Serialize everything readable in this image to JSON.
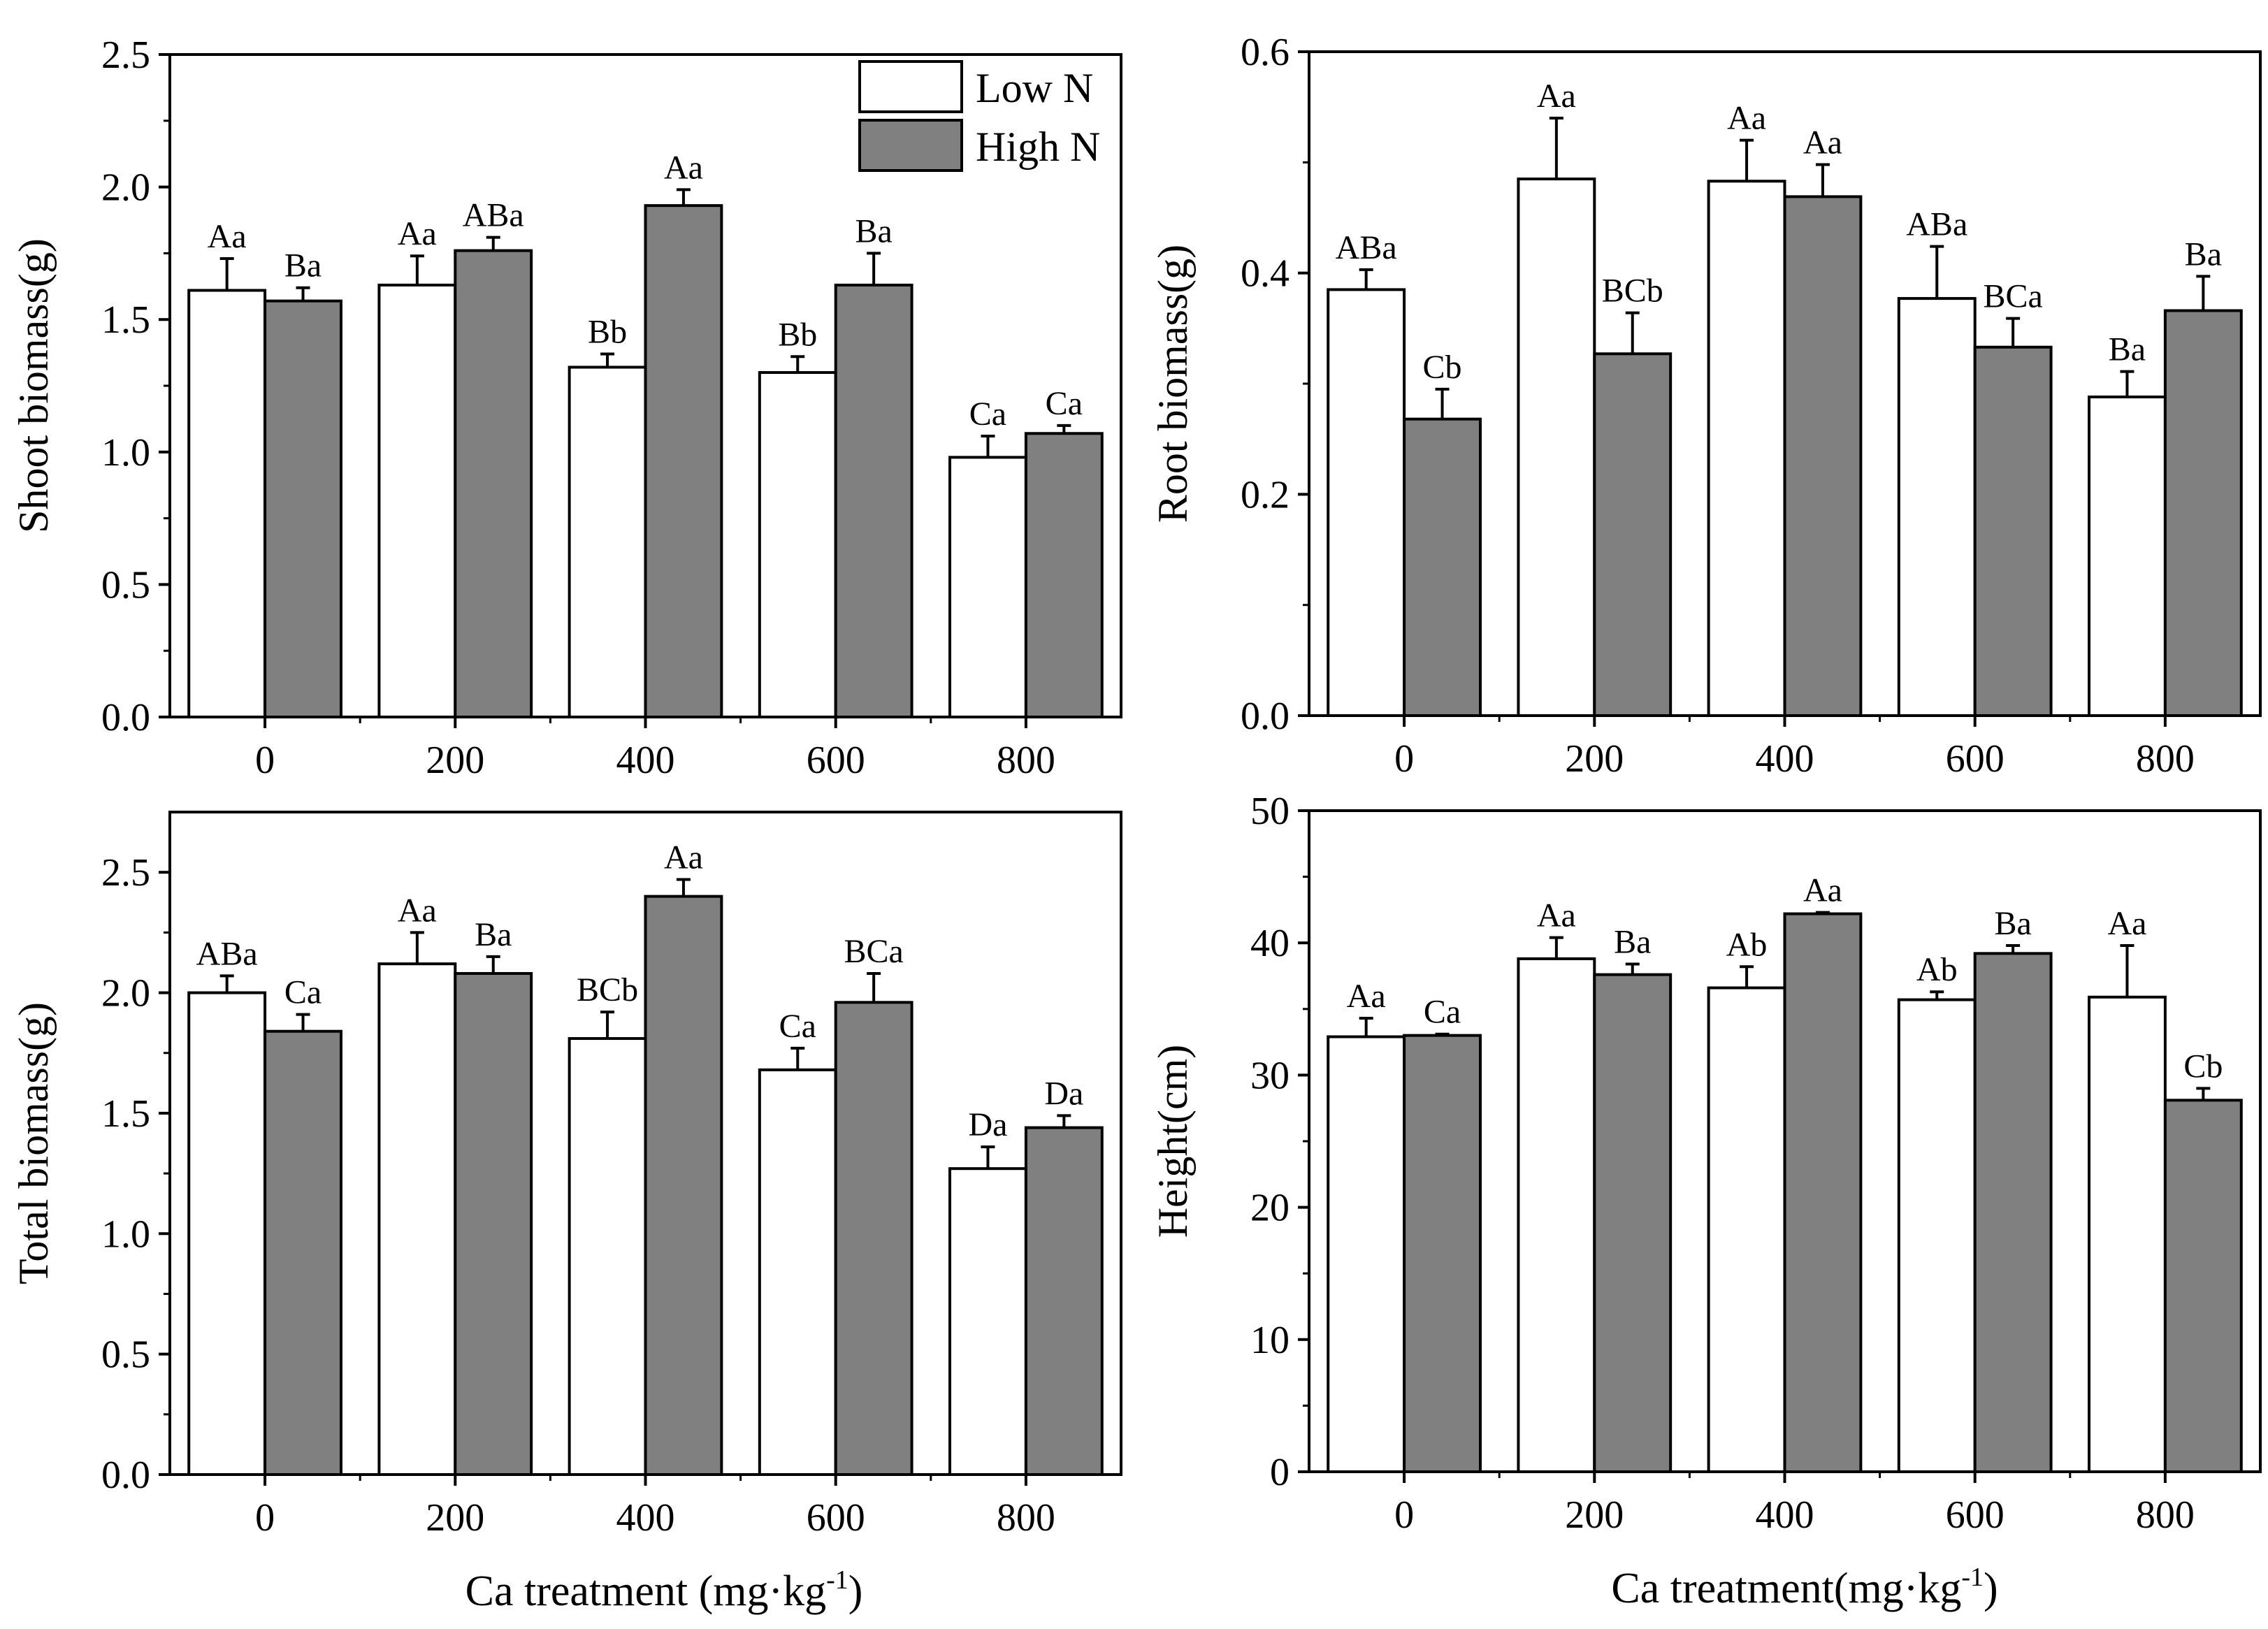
{
  "legend": {
    "low_label": "Low N",
    "high_label": "High N"
  },
  "colors": {
    "low_fill": "#ffffff",
    "high_fill": "#808080",
    "stroke": "#000000"
  },
  "bottom_xlabels": {
    "left": {
      "main": "Ca treatment (mg·kg",
      "sup": "-1",
      "end": ")"
    },
    "right": {
      "main": "Ca treatment(mg·kg",
      "sup": "-1",
      "end": ")"
    }
  },
  "chart_data": [
    {
      "type": "bar",
      "panel": "top-left",
      "ylabel": "Shoot biomass(g)",
      "ylim": [
        0,
        2.5
      ],
      "yticks": [
        0,
        0.5,
        1.0,
        1.5,
        2.0,
        2.5
      ],
      "ytick_labels": [
        "0.0",
        "0.5",
        "1.0",
        "1.5",
        "2.0",
        "2.5"
      ],
      "categories": [
        "0",
        "200",
        "400",
        "600",
        "800"
      ],
      "series": [
        {
          "name": "Low N",
          "values": [
            1.61,
            1.63,
            1.32,
            1.3,
            0.98
          ],
          "errors": [
            0.12,
            0.11,
            0.05,
            0.06,
            0.08
          ],
          "labels": [
            "Aa",
            "Aa",
            "Bb",
            "Bb",
            "Ca"
          ]
        },
        {
          "name": "High N",
          "values": [
            1.57,
            1.76,
            1.93,
            1.63,
            1.07
          ],
          "errors": [
            0.05,
            0.05,
            0.06,
            0.12,
            0.03
          ],
          "labels": [
            "Ba",
            "ABa",
            "Aa",
            "Ba",
            "Ca"
          ]
        }
      ]
    },
    {
      "type": "bar",
      "panel": "top-right",
      "ylabel": "Root biomass(g)",
      "ylim": [
        0,
        0.6
      ],
      "yticks": [
        0,
        0.2,
        0.4,
        0.6
      ],
      "ytick_labels": [
        "0.0",
        "0.2",
        "0.4",
        "0.6"
      ],
      "categories": [
        "0",
        "200",
        "400",
        "600",
        "800"
      ],
      "series": [
        {
          "name": "Low N",
          "values": [
            0.385,
            0.485,
            0.483,
            0.377,
            0.288
          ],
          "errors": [
            0.018,
            0.055,
            0.037,
            0.047,
            0.023
          ],
          "labels": [
            "ABa",
            "Aa",
            "Aa",
            "ABa",
            "Ba"
          ]
        },
        {
          "name": "High N",
          "values": [
            0.268,
            0.327,
            0.469,
            0.333,
            0.366
          ],
          "errors": [
            0.027,
            0.037,
            0.029,
            0.026,
            0.031
          ],
          "labels": [
            "Cb",
            "BCb",
            "Aa",
            "BCa",
            "Ba"
          ]
        }
      ]
    },
    {
      "type": "bar",
      "panel": "bottom-left",
      "ylabel": "Total biomass(g)",
      "ylim": [
        0,
        2.75
      ],
      "yticks": [
        0,
        0.5,
        1.0,
        1.5,
        2.0,
        2.5
      ],
      "ytick_labels": [
        "0.0",
        "0.5",
        "1.0",
        "1.5",
        "2.0",
        "2.5"
      ],
      "categories": [
        "0",
        "200",
        "400",
        "600",
        "800"
      ],
      "series": [
        {
          "name": "Low N",
          "values": [
            2.0,
            2.12,
            1.81,
            1.68,
            1.27
          ],
          "errors": [
            0.07,
            0.13,
            0.11,
            0.09,
            0.09
          ],
          "labels": [
            "ABa",
            "Aa",
            "BCb",
            "Ca",
            "Da"
          ]
        },
        {
          "name": "High N",
          "values": [
            1.84,
            2.08,
            2.4,
            1.96,
            1.44
          ],
          "errors": [
            0.07,
            0.07,
            0.07,
            0.12,
            0.05
          ],
          "labels": [
            "Ca",
            "Ba",
            "Aa",
            "BCa",
            "Da"
          ]
        }
      ]
    },
    {
      "type": "bar",
      "panel": "bottom-right",
      "ylabel": "Height(cm)",
      "ylim": [
        0,
        50
      ],
      "yticks": [
        0,
        10,
        20,
        30,
        40,
        50
      ],
      "ytick_labels": [
        "0",
        "10",
        "20",
        "30",
        "40",
        "50"
      ],
      "categories": [
        "0",
        "200",
        "400",
        "600",
        "800"
      ],
      "series": [
        {
          "name": "Low N",
          "values": [
            32.9,
            38.8,
            36.6,
            35.7,
            35.9
          ],
          "errors": [
            1.4,
            1.6,
            1.6,
            0.6,
            3.9
          ],
          "labels": [
            "Aa",
            "Aa",
            "Ab",
            "Ab",
            "Aa"
          ]
        },
        {
          "name": "High N",
          "values": [
            33.0,
            37.6,
            42.2,
            39.2,
            28.1
          ],
          "errors": [
            0.1,
            0.8,
            0.1,
            0.6,
            0.9
          ],
          "labels": [
            "Ca",
            "Ba",
            "Aa",
            "Ba",
            "Cb"
          ]
        }
      ]
    }
  ]
}
